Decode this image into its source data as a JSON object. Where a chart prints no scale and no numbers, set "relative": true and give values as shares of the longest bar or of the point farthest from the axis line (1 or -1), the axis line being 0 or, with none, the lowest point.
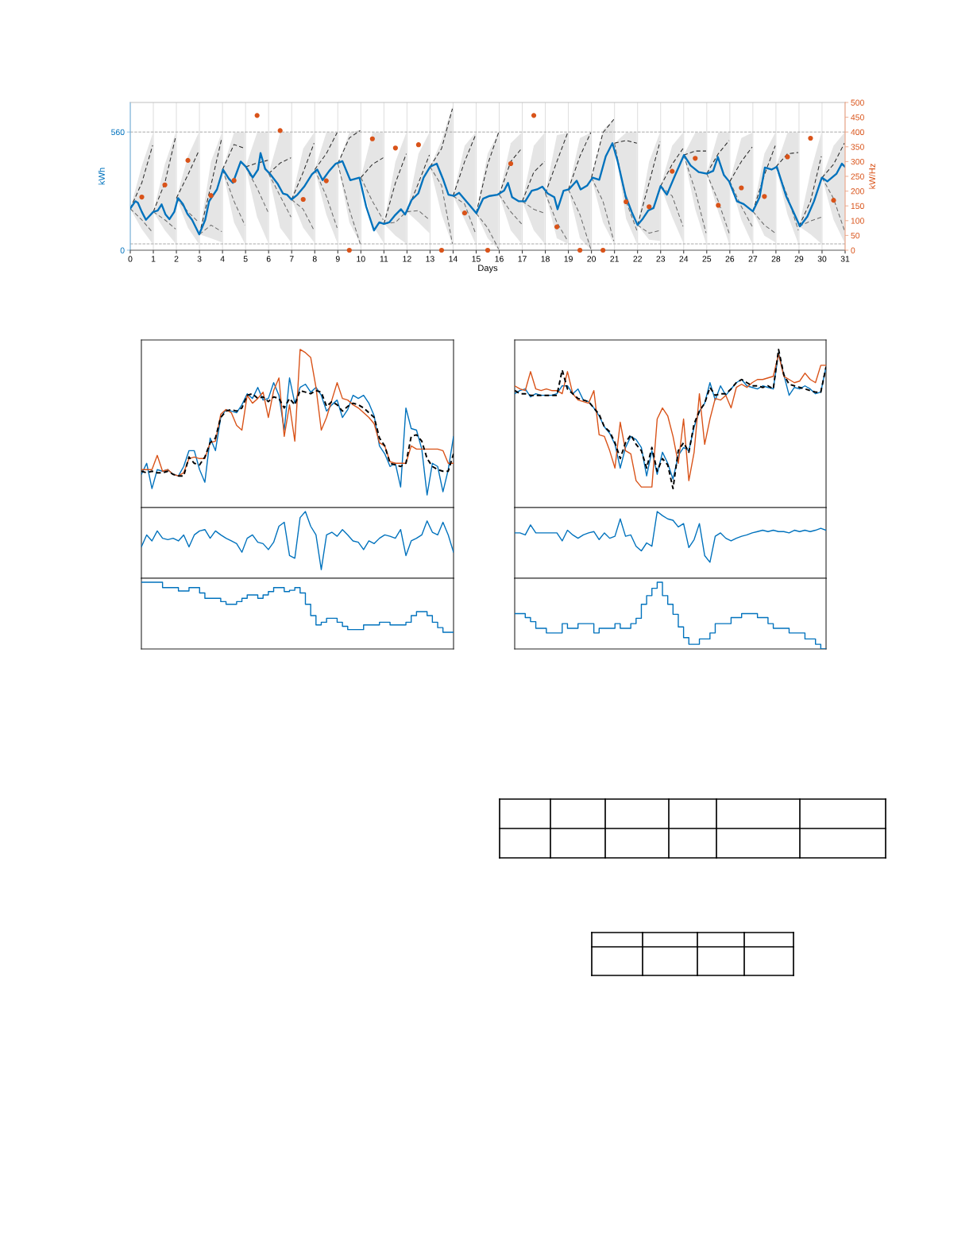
{
  "chart_data": [
    {
      "type": "line",
      "xlabel": "Days",
      "ylabel": "kWh",
      "y2label": "kW/Hz",
      "xlim": [
        0,
        31
      ],
      "xticks": [
        0,
        1,
        2,
        3,
        4,
        5,
        6,
        7,
        8,
        9,
        10,
        11,
        12,
        13,
        14,
        15,
        16,
        17,
        18,
        19,
        20,
        21,
        22,
        23,
        24,
        25,
        26,
        27,
        28,
        29,
        30,
        31
      ],
      "ylim": [
        0,
        700
      ],
      "yticks": [
        0,
        560
      ],
      "y2lim": [
        0,
        500
      ],
      "y2ticks": [
        0,
        50,
        100,
        150,
        200,
        250,
        300,
        350,
        400,
        450,
        500
      ],
      "grid": "x",
      "ref_lines": [
        {
          "axis": "y",
          "value": 560,
          "color": "#a6a6a6",
          "line_style": "dashed"
        },
        {
          "axis": "y",
          "value": 30,
          "color": "#a6a6a6",
          "line_style": "dashed"
        }
      ],
      "x": [
        0,
        0.5,
        0.97,
        0.985,
        1,
        1.5,
        1.97,
        1.985,
        2,
        2.5,
        2.97,
        2.985,
        3,
        3.5,
        3.97,
        3.985,
        4,
        4.5,
        4.97,
        4.985,
        5,
        5.5,
        5.97,
        5.985,
        6,
        6.5,
        6.97,
        6.985,
        7,
        7.5,
        7.97,
        7.985,
        8,
        8.5,
        8.97,
        8.985,
        9,
        9.5,
        9.97,
        9.985,
        10,
        10.5,
        10.97,
        10.985,
        11,
        11.5,
        11.97,
        11.985,
        12,
        12.5,
        12.97,
        12.985,
        13,
        13.5,
        13.97,
        13.985,
        14,
        14.5,
        14.97,
        14.985,
        15,
        15.5,
        15.97,
        15.985,
        16,
        16.5,
        16.97,
        16.985,
        17,
        17.5,
        17.97,
        17.985,
        18,
        18.5,
        18.97,
        18.985,
        19,
        19.5,
        19.97,
        19.985,
        20,
        20.5,
        20.97,
        20.985,
        21,
        21.5,
        21.97,
        21.985,
        22,
        22.5,
        22.97,
        22.985,
        23,
        23.5,
        23.97,
        23.985,
        24,
        24.5,
        24.97,
        24.985,
        25,
        25.5,
        25.97,
        25.985,
        26,
        26.5,
        26.97,
        26.985,
        27,
        27.5,
        27.97,
        27.985,
        28,
        28.5,
        28.97,
        28.985,
        29,
        29.5,
        29.97,
        29.985,
        30,
        30.5,
        30.97
      ],
      "series": [
        {
          "type": "line",
          "color": "#2b2b2b",
          "line_style": "dashed",
          "values": [
            197,
            319,
            497,
            null,
            182,
            319,
            538,
            null,
            247,
            357,
            470,
            null,
            75,
            307,
            532,
            null,
            382,
            501,
            482,
            null,
            395,
            413,
            426,
            null,
            363,
            413,
            438,
            null,
            240,
            370,
            507,
            null,
            382,
            457,
            557,
            null,
            410,
            532,
            567,
            null,
            344,
            407,
            438,
            null,
            125,
            319,
            457,
            null,
            182,
            319,
            451,
            null,
            395,
            482,
            670,
            null,
            257,
            420,
            545,
            null,
            175,
            407,
            557,
            null,
            263,
            420,
            482,
            null,
            232,
            370,
            420,
            null,
            269,
            420,
            557,
            null,
            288,
            445,
            557,
            null,
            344,
            557,
            620,
            null,
            507,
            520,
            507,
            null,
            119,
            319,
            514,
            null,
            304,
            407,
            482,
            null,
            451,
            470,
            470,
            null,
            363,
            457,
            520,
            null,
            326,
            420,
            489,
            null,
            184,
            357,
            495,
            null,
            395,
            457,
            463,
            null,
            113,
            232,
            445,
            null,
            344,
            407,
            507
          ],
          "lower": [
            197,
            100,
            30,
            null,
            182,
            94,
            31,
            null,
            247,
            106,
            31,
            null,
            75,
            56,
            38,
            null,
            382,
            132,
            31,
            null,
            395,
            157,
            38,
            null,
            363,
            106,
            38,
            null,
            240,
            106,
            38,
            null,
            382,
            169,
            38,
            null,
            410,
            132,
            31,
            null,
            344,
            120,
            38,
            null,
            125,
            69,
            31,
            null,
            182,
            132,
            81,
            null,
            395,
            169,
            25,
            null,
            257,
            144,
            31,
            null,
            175,
            56,
            4,
            null,
            263,
            94,
            31,
            null,
            232,
            94,
            31,
            null,
            269,
            56,
            31,
            null,
            288,
            56,
            4,
            null,
            344,
            132,
            31,
            null,
            507,
            150,
            31,
            null,
            119,
            50,
            44,
            null,
            304,
            157,
            38,
            null,
            451,
            194,
            31,
            null,
            363,
            182,
            31,
            null,
            326,
            144,
            31,
            null,
            184,
            69,
            38,
            null,
            395,
            169,
            31,
            null,
            113,
            75,
            31,
            null,
            344,
            144,
            38
          ],
          "upper": [
            197,
            400,
            551,
            null,
            182,
            407,
            557,
            null,
            247,
            445,
            557,
            null,
            75,
            420,
            557,
            null,
            382,
            557,
            557,
            null,
            395,
            557,
            557,
            null,
            363,
            557,
            557,
            null,
            240,
            482,
            557,
            null,
            382,
            557,
            557,
            null,
            410,
            557,
            570,
            null,
            344,
            557,
            557,
            null,
            125,
            420,
            557,
            null,
            182,
            457,
            557,
            null,
            395,
            520,
            683,
            null,
            257,
            495,
            557,
            null,
            175,
            457,
            557,
            null,
            263,
            507,
            557,
            null,
            232,
            495,
            557,
            null,
            269,
            545,
            557,
            null,
            288,
            532,
            557,
            null,
            344,
            570,
            620,
            null,
            507,
            557,
            557,
            null,
            119,
            420,
            557,
            null,
            304,
            495,
            557,
            null,
            451,
            557,
            557,
            null,
            363,
            557,
            557,
            null,
            326,
            532,
            557,
            null,
            184,
            457,
            557,
            null,
            395,
            557,
            557,
            null,
            113,
            370,
            557,
            null,
            344,
            495,
            557
          ]
        },
        {
          "type": "line",
          "color": "#6b6b6b",
          "line_style": "dashed",
          "values": [
            197,
            144,
            84,
            null,
            182,
            144,
            100,
            null,
            247,
            182,
            132,
            null,
            75,
            119,
            88,
            null,
            382,
            232,
            119,
            null,
            395,
            294,
            182,
            null,
            363,
            257,
            157,
            null,
            240,
            194,
            94,
            null,
            382,
            257,
            106,
            null,
            410,
            194,
            31,
            null,
            344,
            232,
            144,
            null,
            125,
            132,
            182,
            null,
            182,
            188,
            144,
            null,
            395,
            307,
            31,
            null,
            257,
            219,
            81,
            null,
            175,
            106,
            6,
            null,
            263,
            182,
            125,
            null,
            232,
            194,
            175,
            null,
            269,
            132,
            44,
            null,
            288,
            169,
            6,
            null,
            344,
            232,
            44,
            null,
            507,
            232,
            94,
            null,
            119,
            81,
            94,
            null,
            304,
            257,
            113,
            null,
            451,
            282,
            81,
            null,
            363,
            232,
            81,
            null,
            326,
            207,
            113,
            null,
            184,
            119,
            81,
            null,
            395,
            257,
            94,
            null,
            113,
            138,
            157,
            null,
            344,
            244,
            94
          ]
        },
        {
          "type": "line",
          "color": "#0072bd",
          "x": [
            0,
            0.22,
            0.33,
            0.5,
            0.68,
            1,
            1.19,
            1.36,
            1.53,
            1.7,
            1.91,
            2.07,
            2.28,
            2.48,
            2.68,
            2.99,
            3.25,
            3.42,
            3.76,
            4.02,
            4.28,
            4.45,
            4.79,
            5.02,
            5.31,
            5.54,
            5.65,
            5.85,
            6.05,
            6.4,
            6.62,
            6.8,
            6.99,
            7.25,
            7.54,
            7.88,
            8.11,
            8.34,
            8.63,
            8.91,
            9.2,
            9.54,
            9.94,
            10.23,
            10.57,
            10.8,
            11,
            11.23,
            11.46,
            11.74,
            11.92,
            12.2,
            12.49,
            12.72,
            13,
            13.29,
            13.58,
            13.8,
            14.04,
            14.26,
            14.67,
            15.01,
            15.3,
            15.58,
            15.93,
            16.21,
            16.38,
            16.56,
            16.84,
            17.13,
            17.41,
            17.64,
            17.87,
            18.1,
            18.39,
            18.53,
            18.79,
            19.02,
            19.36,
            19.53,
            19.82,
            20.05,
            20.34,
            20.62,
            20.91,
            21.14,
            21.48,
            21.75,
            22,
            22.23,
            22.46,
            22.69,
            23,
            23.27,
            23.61,
            24.01,
            24.3,
            24.65,
            25,
            25.28,
            25.48,
            25.74,
            25.97,
            26.31,
            26.6,
            27,
            27.29,
            27.52,
            27.81,
            28.04,
            28.44,
            28.73,
            29.04,
            29.36,
            29.65,
            29.99,
            30.23,
            30.63,
            30.86,
            31
          ],
          "values": [
            197,
            232,
            225,
            182,
            144,
            182,
            188,
            217,
            169,
            147,
            182,
            247,
            219,
            172,
            144,
            75,
            144,
            232,
            288,
            382,
            338,
            319,
            420,
            395,
            344,
            382,
            460,
            385,
            363,
            313,
            269,
            263,
            240,
            263,
            301,
            360,
            382,
            332,
            376,
            410,
            422,
            332,
            344,
            207,
            94,
            132,
            125,
            132,
            163,
            194,
            169,
            238,
            269,
            344,
            395,
            410,
            332,
            263,
            257,
            272,
            219,
            175,
            244,
            257,
            263,
            282,
            319,
            251,
            232,
            232,
            282,
            288,
            301,
            269,
            251,
            194,
            282,
            288,
            329,
            288,
            307,
            344,
            334,
            445,
            507,
            420,
            257,
            180,
            119,
            150,
            188,
            200,
            304,
            263,
            351,
            451,
            401,
            370,
            363,
            376,
            442,
            357,
            326,
            232,
            219,
            184,
            251,
            392,
            382,
            395,
            257,
            188,
            113,
            159,
            232,
            344,
            326,
            363,
            410,
            395
          ]
        },
        {
          "type": "scatter",
          "axis": "y2",
          "color": "#d95319",
          "marker": "circle",
          "x": [
            0.5,
            1.5,
            2.5,
            3.5,
            4.5,
            5.5,
            6.5,
            7.5,
            8.5,
            9.5,
            10.5,
            11.5,
            12.5,
            13.5,
            14.5,
            15.5,
            16.5,
            17.5,
            18.5,
            19.5,
            20.5,
            21.5,
            22.5,
            23.5,
            24.5,
            25.5,
            26.5,
            27.5,
            28.5,
            29.5,
            30.5
          ],
          "values": [
            180,
            221,
            304,
            185,
            236,
            456,
            405,
            172,
            235,
            0,
            377,
            346,
            357,
            0,
            126,
            0,
            293,
            456,
            79,
            0,
            0,
            164,
            147,
            267,
            311,
            152,
            211,
            182,
            316,
            379,
            169
          ]
        }
      ]
    },
    {
      "type": "line",
      "relative": true,
      "categories": [
        null,
        null,
        null,
        null,
        null,
        null,
        null,
        null,
        null,
        null,
        null,
        null,
        null,
        null,
        null,
        null,
        null,
        null,
        null,
        null,
        null,
        null,
        null,
        null,
        null,
        null,
        null,
        null,
        null,
        null,
        null,
        null,
        null,
        null,
        null,
        null,
        null,
        null,
        null,
        null,
        null,
        null,
        null,
        null,
        null,
        null,
        null,
        null,
        null,
        null,
        null,
        null,
        null,
        null,
        null,
        null,
        null,
        null,
        null,
        null
      ],
      "series": [
        {
          "color": "#0072bd",
          "values": [
            0.21,
            0.28,
            0.12,
            0.24,
            0.23,
            0.24,
            0.21,
            0.2,
            0.26,
            0.36,
            0.36,
            0.24,
            0.16,
            0.44,
            0.36,
            0.57,
            0.62,
            0.61,
            0.6,
            0.65,
            0.72,
            0.69,
            0.76,
            0.68,
            0.69,
            0.79,
            0.71,
            0.49,
            0.82,
            0.66,
            0.76,
            0.78,
            0.73,
            0.76,
            0.71,
            0.61,
            0.65,
            0.68,
            0.57,
            0.62,
            0.71,
            0.69,
            0.71,
            0.66,
            0.58,
            0.39,
            0.34,
            0.26,
            0.28,
            0.13,
            0.63,
            0.5,
            0.49,
            0.37,
            0.08,
            0.28,
            0.26,
            0.1,
            0.24,
            0.45
          ]
        },
        {
          "color": "#d95319",
          "values": [
            0.24,
            0.24,
            0.24,
            0.33,
            0.23,
            0.24,
            0.21,
            0.2,
            0.22,
            0.31,
            0.32,
            0.31,
            0.31,
            0.41,
            0.42,
            0.59,
            0.62,
            0.6,
            0.52,
            0.49,
            0.71,
            0.66,
            0.69,
            0.73,
            0.57,
            0.74,
            0.82,
            0.45,
            0.65,
            0.42,
            1.0,
            0.98,
            0.95,
            0.76,
            0.49,
            0.57,
            0.68,
            0.79,
            0.69,
            0.68,
            0.65,
            0.63,
            0.6,
            0.57,
            0.53,
            0.41,
            0.39,
            0.29,
            0.28,
            0.28,
            0.28,
            0.39,
            0.37,
            0.37,
            0.37,
            0.37,
            0.37,
            0.36,
            0.28,
            0.28
          ]
        },
        {
          "color": "#000000",
          "line_style": "dashed",
          "values": [
            0.23,
            0.22,
            0.23,
            0.22,
            0.22,
            0.23,
            0.21,
            0.2,
            0.2,
            0.32,
            0.28,
            0.27,
            0.32,
            0.41,
            0.44,
            0.57,
            0.61,
            0.62,
            0.61,
            0.63,
            0.71,
            0.72,
            0.69,
            0.7,
            0.67,
            0.7,
            0.69,
            0.63,
            0.69,
            0.65,
            0.74,
            0.73,
            0.72,
            0.74,
            0.73,
            0.64,
            0.67,
            0.65,
            0.61,
            0.64,
            0.66,
            0.65,
            0.63,
            0.6,
            0.57,
            0.44,
            0.39,
            0.28,
            0.27,
            0.26,
            0.28,
            0.45,
            0.46,
            0.42,
            0.31,
            0.26,
            0.24,
            0.23,
            0.23,
            0.34
          ]
        }
      ]
    },
    {
      "type": "line",
      "relative": true,
      "categories": [
        null,
        null,
        null,
        null,
        null,
        null,
        null,
        null,
        null,
        null,
        null,
        null,
        null,
        null,
        null,
        null,
        null,
        null,
        null,
        null,
        null,
        null,
        null,
        null,
        null,
        null,
        null,
        null,
        null,
        null,
        null,
        null,
        null,
        null,
        null,
        null,
        null,
        null,
        null,
        null,
        null,
        null,
        null,
        null,
        null,
        null,
        null,
        null,
        null,
        null,
        null,
        null,
        null,
        null,
        null,
        null,
        null,
        null,
        null,
        null
      ],
      "color": "#0072bd",
      "values": [
        0.47,
        0.65,
        0.56,
        0.71,
        0.6,
        0.58,
        0.6,
        0.56,
        0.65,
        0.47,
        0.65,
        0.71,
        0.73,
        0.6,
        0.71,
        0.65,
        0.6,
        0.56,
        0.52,
        0.39,
        0.6,
        0.65,
        0.54,
        0.52,
        0.43,
        0.54,
        0.78,
        0.84,
        0.34,
        0.3,
        0.91,
        1.0,
        0.78,
        0.65,
        0.13,
        0.65,
        0.69,
        0.63,
        0.73,
        0.65,
        0.56,
        0.54,
        0.43,
        0.56,
        0.52,
        0.6,
        0.65,
        0.63,
        0.6,
        0.73,
        0.34,
        0.56,
        0.6,
        0.65,
        0.86,
        0.69,
        0.65,
        0.84,
        0.65,
        0.39
      ]
    },
    {
      "type": "step",
      "relative": true,
      "categories": [
        null,
        null,
        null,
        null,
        null,
        null,
        null,
        null,
        null,
        null,
        null,
        null,
        null,
        null,
        null,
        null,
        null,
        null,
        null,
        null,
        null,
        null,
        null,
        null,
        null,
        null,
        null,
        null,
        null,
        null,
        null,
        null,
        null,
        null,
        null,
        null,
        null,
        null,
        null,
        null,
        null,
        null,
        null,
        null,
        null,
        null,
        null,
        null,
        null,
        null,
        null,
        null,
        null,
        null,
        null,
        null,
        null,
        null,
        null,
        null
      ],
      "color": "#0072bd",
      "values": [
        1.0,
        1.0,
        1.0,
        1.0,
        0.92,
        0.92,
        0.92,
        0.87,
        0.87,
        0.92,
        0.92,
        0.84,
        0.76,
        0.76,
        0.76,
        0.71,
        0.67,
        0.67,
        0.71,
        0.76,
        0.81,
        0.81,
        0.76,
        0.81,
        0.86,
        0.92,
        0.92,
        0.86,
        0.88,
        0.92,
        0.84,
        0.67,
        0.5,
        0.36,
        0.4,
        0.46,
        0.46,
        0.4,
        0.34,
        0.29,
        0.29,
        0.29,
        0.36,
        0.36,
        0.36,
        0.4,
        0.4,
        0.36,
        0.36,
        0.36,
        0.4,
        0.5,
        0.56,
        0.56,
        0.5,
        0.4,
        0.32,
        0.25,
        0.25,
        0.25
      ]
    },
    {
      "type": "line",
      "relative": true,
      "categories": [
        null,
        null,
        null,
        null,
        null,
        null,
        null,
        null,
        null,
        null,
        null,
        null,
        null,
        null,
        null,
        null,
        null,
        null,
        null,
        null,
        null,
        null,
        null,
        null,
        null,
        null,
        null,
        null,
        null,
        null,
        null,
        null,
        null,
        null,
        null,
        null,
        null,
        null,
        null,
        null,
        null,
        null,
        null,
        null,
        null,
        null,
        null,
        null,
        null,
        null,
        null,
        null,
        null,
        null,
        null,
        null,
        null,
        null,
        null,
        null
      ],
      "series": [
        {
          "color": "#0072bd",
          "values": [
            0.72,
            0.74,
            0.75,
            0.7,
            0.72,
            0.71,
            0.71,
            0.71,
            0.72,
            0.77,
            0.77,
            0.72,
            0.75,
            0.68,
            0.67,
            0.63,
            0.58,
            0.51,
            0.47,
            0.4,
            0.25,
            0.38,
            0.45,
            0.43,
            0.38,
            0.2,
            0.36,
            0.21,
            0.35,
            0.28,
            0.18,
            0.33,
            0.38,
            0.36,
            0.51,
            0.61,
            0.66,
            0.79,
            0.68,
            0.77,
            0.71,
            0.75,
            0.79,
            0.81,
            0.77,
            0.76,
            0.75,
            0.77,
            0.76,
            0.75,
            0.98,
            0.84,
            0.71,
            0.76,
            0.75,
            0.77,
            0.75,
            0.72,
            0.73,
            0.89
          ]
        },
        {
          "color": "#d95319",
          "values": [
            0.77,
            0.75,
            0.74,
            0.86,
            0.75,
            0.74,
            0.75,
            0.74,
            0.74,
            0.72,
            0.86,
            0.72,
            0.68,
            0.67,
            0.66,
            0.74,
            0.46,
            0.45,
            0.36,
            0.25,
            0.54,
            0.36,
            0.34,
            0.17,
            0.13,
            0.13,
            0.13,
            0.56,
            0.63,
            0.58,
            0.45,
            0.28,
            0.56,
            0.17,
            0.35,
            0.72,
            0.4,
            0.56,
            0.69,
            0.68,
            0.71,
            0.63,
            0.76,
            0.78,
            0.76,
            0.79,
            0.81,
            0.81,
            0.82,
            0.83,
            0.97,
            0.83,
            0.81,
            0.79,
            0.8,
            0.85,
            0.81,
            0.79,
            0.9,
            0.9
          ]
        },
        {
          "color": "#000000",
          "line_style": "dashed",
          "values": [
            0.74,
            0.72,
            0.72,
            0.71,
            0.71,
            0.71,
            0.71,
            0.71,
            0.71,
            0.87,
            0.75,
            0.72,
            0.69,
            0.68,
            0.67,
            0.63,
            0.59,
            0.51,
            0.48,
            0.41,
            0.31,
            0.41,
            0.46,
            0.4,
            0.36,
            0.25,
            0.38,
            0.23,
            0.31,
            0.27,
            0.12,
            0.36,
            0.41,
            0.35,
            0.53,
            0.61,
            0.66,
            0.76,
            0.71,
            0.72,
            0.72,
            0.75,
            0.79,
            0.81,
            0.79,
            0.77,
            0.77,
            0.76,
            0.77,
            0.75,
            1.0,
            0.84,
            0.78,
            0.77,
            0.76,
            0.75,
            0.74,
            0.73,
            0.73,
            0.89
          ]
        }
      ]
    },
    {
      "type": "line",
      "relative": true,
      "categories": [
        null,
        null,
        null,
        null,
        null,
        null,
        null,
        null,
        null,
        null,
        null,
        null,
        null,
        null,
        null,
        null,
        null,
        null,
        null,
        null,
        null,
        null,
        null,
        null,
        null,
        null,
        null,
        null,
        null,
        null,
        null,
        null,
        null,
        null,
        null,
        null,
        null,
        null,
        null,
        null,
        null,
        null,
        null,
        null,
        null,
        null,
        null,
        null,
        null,
        null,
        null,
        null,
        null,
        null,
        null,
        null,
        null,
        null,
        null,
        null
      ],
      "color": "#0072bd",
      "values": [
        0.68,
        0.68,
        0.65,
        0.8,
        0.68,
        0.68,
        0.68,
        0.68,
        0.68,
        0.56,
        0.72,
        0.65,
        0.6,
        0.65,
        0.68,
        0.7,
        0.58,
        0.68,
        0.6,
        0.63,
        0.89,
        0.63,
        0.65,
        0.48,
        0.41,
        0.53,
        0.48,
        1.0,
        0.94,
        0.89,
        0.87,
        0.77,
        0.82,
        0.46,
        0.58,
        0.82,
        0.34,
        0.24,
        0.63,
        0.68,
        0.6,
        0.56,
        0.6,
        0.63,
        0.65,
        0.68,
        0.7,
        0.72,
        0.7,
        0.72,
        0.7,
        0.7,
        0.68,
        0.72,
        0.7,
        0.72,
        0.7,
        0.72,
        0.75,
        0.72
      ]
    },
    {
      "type": "step",
      "relative": true,
      "categories": [
        null,
        null,
        null,
        null,
        null,
        null,
        null,
        null,
        null,
        null,
        null,
        null,
        null,
        null,
        null,
        null,
        null,
        null,
        null,
        null,
        null,
        null,
        null,
        null,
        null,
        null,
        null,
        null,
        null,
        null,
        null,
        null,
        null,
        null,
        null,
        null,
        null,
        null,
        null,
        null,
        null,
        null,
        null,
        null,
        null,
        null,
        null,
        null,
        null,
        null,
        null,
        null,
        null,
        null,
        null,
        null,
        null,
        null,
        null,
        null
      ],
      "color": "#0072bd",
      "values": [
        0.53,
        0.53,
        0.47,
        0.41,
        0.31,
        0.31,
        0.24,
        0.24,
        0.24,
        0.38,
        0.31,
        0.31,
        0.38,
        0.38,
        0.38,
        0.24,
        0.31,
        0.31,
        0.31,
        0.38,
        0.31,
        0.31,
        0.38,
        0.46,
        0.67,
        0.8,
        0.91,
        1.0,
        0.8,
        0.67,
        0.52,
        0.33,
        0.17,
        0.07,
        0.07,
        0.15,
        0.15,
        0.24,
        0.38,
        0.38,
        0.38,
        0.47,
        0.47,
        0.53,
        0.53,
        0.53,
        0.47,
        0.47,
        0.38,
        0.31,
        0.31,
        0.31,
        0.24,
        0.24,
        0.24,
        0.15,
        0.15,
        0.07,
        0,
        0
      ]
    }
  ]
}
